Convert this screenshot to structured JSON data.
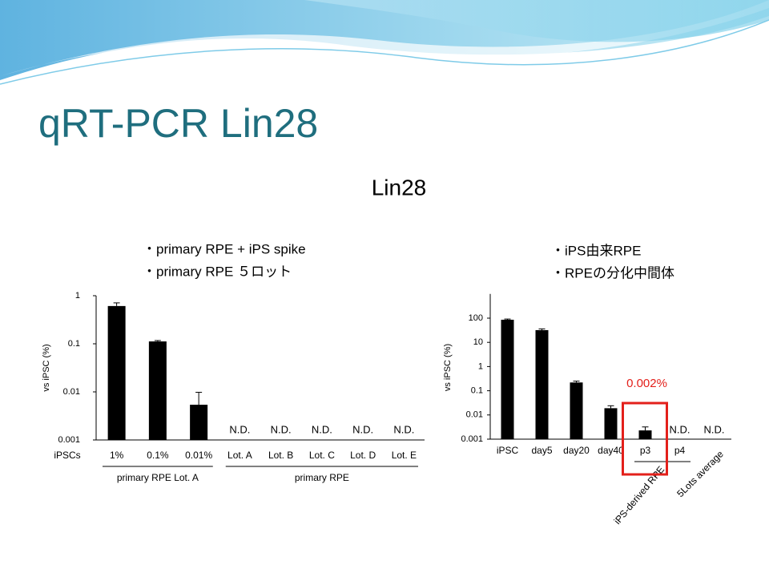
{
  "slide": {
    "title": "qRT-PCR Lin28",
    "subtitle": "Lin28"
  },
  "chart_data": [
    {
      "type": "bar",
      "log_scale": true,
      "color": "#000000",
      "notes": [
        "・primary RPE + iPS spike",
        "・primary RPE ５ロット"
      ],
      "ylabel": "vs iPSC (%)",
      "row_label": "iPSCs",
      "categories": [
        "1%",
        "0.1%",
        "0.01%",
        "Lot. A",
        "Lot. B",
        "Lot. C",
        "Lot. D",
        "Lot. E"
      ],
      "values": [
        0.61,
        0.112,
        0.0054,
        null,
        null,
        null,
        null,
        null
      ],
      "errors": [
        0.1,
        0.005,
        0.0044,
        null,
        null,
        null,
        null,
        null
      ],
      "value_labels": [
        null,
        null,
        null,
        "N.D.",
        "N.D.",
        "N.D.",
        "N.D.",
        "N.D."
      ],
      "groups": [
        {
          "label": "primary RPE Lot. A",
          "span": [
            0,
            2
          ]
        },
        {
          "label": "primary RPE",
          "span": [
            3,
            7
          ]
        }
      ],
      "ylim": [
        0.001,
        1
      ],
      "yticks": [
        0.001,
        0.01,
        0.1,
        1
      ]
    },
    {
      "type": "bar",
      "log_scale": true,
      "color": "#000000",
      "notes": [
        "・iPS由来RPE",
        "・RPEの分化中間体"
      ],
      "ylabel": "vs iPSC (%)",
      "categories": [
        "iPSC",
        "day5",
        "day20",
        "day40",
        "p3",
        "p4",
        "5Lots average"
      ],
      "values": [
        86,
        32,
        0.22,
        0.019,
        0.0023,
        null,
        null
      ],
      "errors": [
        6,
        4,
        0.03,
        0.005,
        0.0009,
        null,
        null
      ],
      "value_labels": [
        null,
        null,
        null,
        null,
        null,
        "N.D.",
        "N.D."
      ],
      "groups": [
        {
          "label": "iPS-derived RPE",
          "span": [
            4,
            5
          ]
        }
      ],
      "annotation": {
        "text": "0.002%",
        "color": "#e3201b",
        "category": 4
      },
      "ylim": [
        0.001,
        1000
      ],
      "yticks": [
        0.001,
        0.01,
        0.1,
        1,
        10,
        100
      ]
    }
  ]
}
